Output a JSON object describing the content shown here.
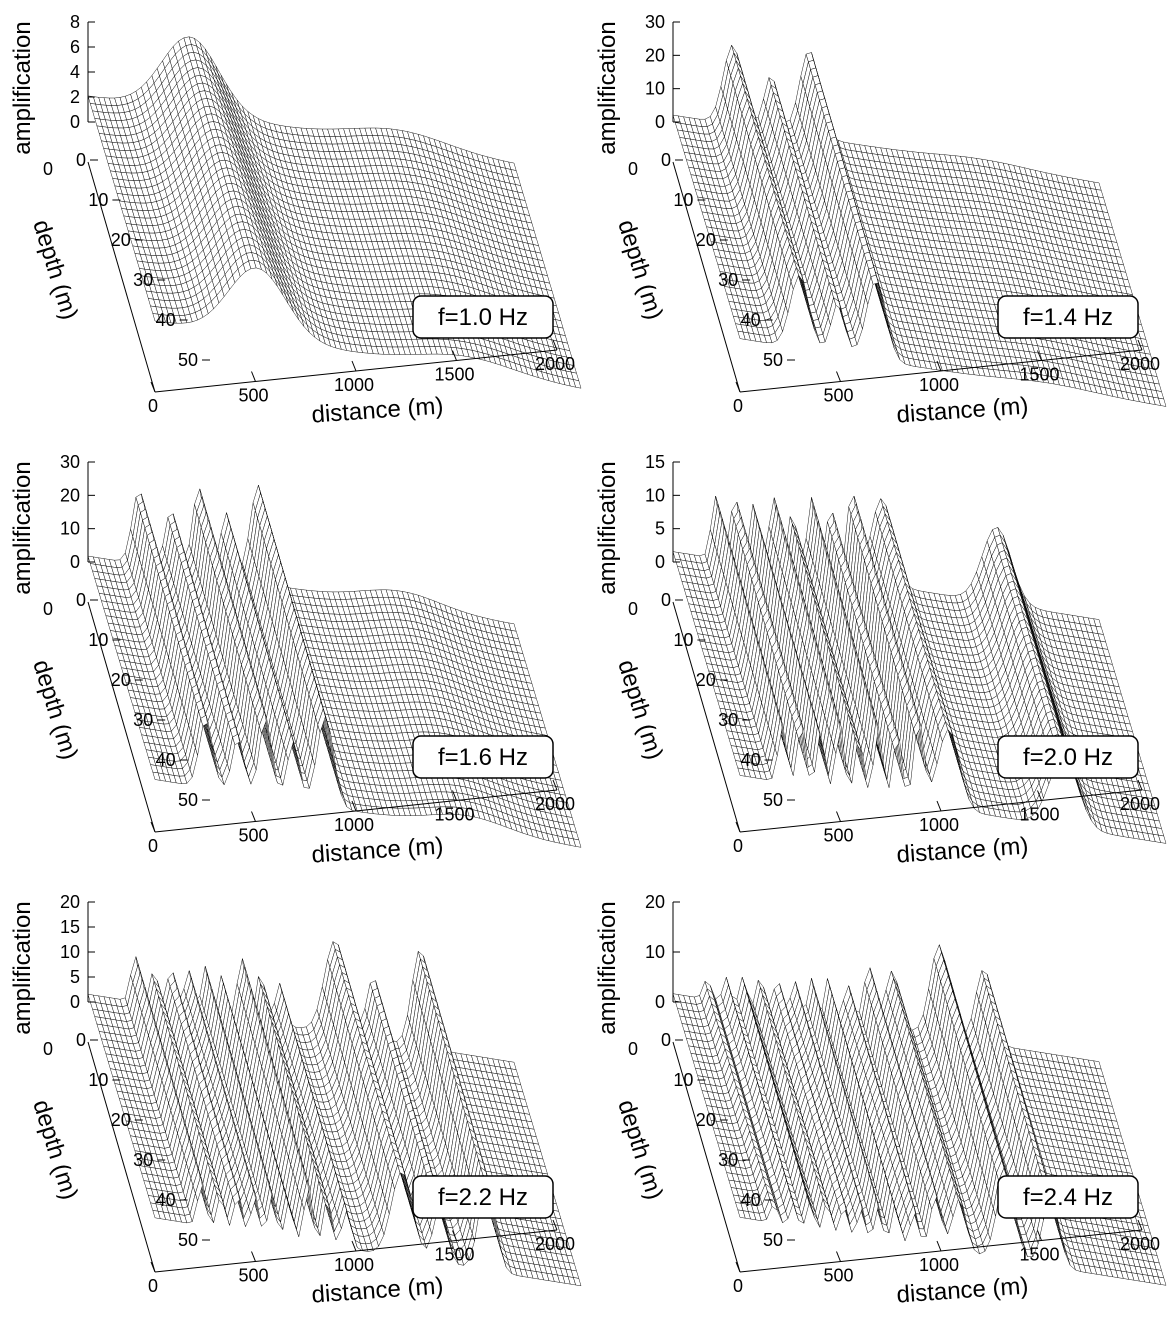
{
  "colors": {
    "mesh": "#000000",
    "face": "#ffffff",
    "background": "#ffffff"
  },
  "chart_data": [
    {
      "type": "surface",
      "annotation": "f=1.0 Hz",
      "xlabel": "distance (m)",
      "ylabel": "depth (m)",
      "zlabel": "amplification",
      "xlim": [
        0,
        2000
      ],
      "ylim": [
        0,
        50
      ],
      "zlim": [
        0,
        8
      ],
      "xticks": [
        "0",
        "500",
        "1000",
        "1500",
        "2000"
      ],
      "yticks": [
        "0",
        "10",
        "20",
        "30",
        "40",
        "50"
      ],
      "zticks": [
        "0",
        "2",
        "4",
        "6",
        "8"
      ],
      "profile": {
        "base": 2.0,
        "peaks": [
          {
            "x": 480,
            "height": 5.8,
            "width": 190
          },
          {
            "x": 1460,
            "height": 1.2,
            "width": 320
          }
        ]
      }
    },
    {
      "type": "surface",
      "annotation": "f=1.4 Hz",
      "xlabel": "distance (m)",
      "ylabel": "depth (m)",
      "zlabel": "amplification",
      "xlim": [
        0,
        2000
      ],
      "ylim": [
        0,
        50
      ],
      "zlim": [
        0,
        30
      ],
      "xticks": [
        "0",
        "500",
        "1000",
        "1500",
        "2000"
      ],
      "yticks": [
        "0",
        "10",
        "20",
        "30",
        "40",
        "50"
      ],
      "zticks": [
        "0",
        "10",
        "20",
        "30"
      ],
      "profile": {
        "base": 2.0,
        "peaks": [
          {
            "x": 280,
            "height": 23,
            "width": 62
          },
          {
            "x": 460,
            "height": 16,
            "width": 45
          },
          {
            "x": 640,
            "height": 25,
            "width": 65
          },
          {
            "x": 1450,
            "height": 1.5,
            "width": 300
          }
        ]
      }
    },
    {
      "type": "surface",
      "annotation": "f=1.6 Hz",
      "xlabel": "distance (m)",
      "ylabel": "depth (m)",
      "zlabel": "amplification",
      "xlim": [
        0,
        2000
      ],
      "ylim": [
        0,
        50
      ],
      "zlim": [
        0,
        35
      ],
      "xticks": [
        "0",
        "500",
        "1000",
        "1500",
        "2000"
      ],
      "yticks": [
        "0",
        "10",
        "20",
        "30",
        "40",
        "50"
      ],
      "zticks": [
        "0",
        "10",
        "20",
        "30"
      ],
      "profile": {
        "base": 2.0,
        "peaks": [
          {
            "x": 240,
            "height": 25,
            "width": 45
          },
          {
            "x": 390,
            "height": 20,
            "width": 40
          },
          {
            "x": 520,
            "height": 29,
            "width": 42
          },
          {
            "x": 650,
            "height": 22,
            "width": 40
          },
          {
            "x": 800,
            "height": 33,
            "width": 55
          },
          {
            "x": 1470,
            "height": 5,
            "width": 260
          }
        ]
      }
    },
    {
      "type": "surface",
      "annotation": "f=2.0 Hz",
      "xlabel": "distance (m)",
      "ylabel": "depth (m)",
      "zlabel": "amplification",
      "xlim": [
        0,
        2000
      ],
      "ylim": [
        0,
        50
      ],
      "zlim": [
        0,
        15
      ],
      "xticks": [
        "0",
        "500",
        "1000",
        "1500",
        "2000"
      ],
      "yticks": [
        "0",
        "10",
        "20",
        "30",
        "40",
        "50"
      ],
      "zticks": [
        "0",
        "5",
        "10",
        "15"
      ],
      "profile": {
        "base": 1.5,
        "peaks": [
          {
            "x": 200,
            "height": 9,
            "width": 28
          },
          {
            "x": 290,
            "height": 10,
            "width": 26
          },
          {
            "x": 380,
            "height": 9,
            "width": 26
          },
          {
            "x": 470,
            "height": 10.5,
            "width": 26
          },
          {
            "x": 560,
            "height": 9,
            "width": 26
          },
          {
            "x": 650,
            "height": 11,
            "width": 28
          },
          {
            "x": 740,
            "height": 10.5,
            "width": 28
          },
          {
            "x": 840,
            "height": 13,
            "width": 32
          },
          {
            "x": 980,
            "height": 12.5,
            "width": 70
          },
          {
            "x": 1520,
            "height": 11,
            "width": 95
          }
        ]
      }
    },
    {
      "type": "surface",
      "annotation": "f=2.2 Hz",
      "xlabel": "distance (m)",
      "ylabel": "depth (m)",
      "zlabel": "amplification",
      "xlim": [
        0,
        2000
      ],
      "ylim": [
        0,
        50
      ],
      "zlim": [
        0,
        20
      ],
      "xticks": [
        "0",
        "500",
        "1000",
        "1500",
        "2000"
      ],
      "yticks": [
        "0",
        "10",
        "20",
        "30",
        "40",
        "50"
      ],
      "zticks": [
        "0",
        "5",
        "10",
        "15",
        "20"
      ],
      "profile": {
        "base": 1.5,
        "peaks": [
          {
            "x": 220,
            "height": 9,
            "width": 26
          },
          {
            "x": 310,
            "height": 7,
            "width": 24
          },
          {
            "x": 390,
            "height": 8,
            "width": 24
          },
          {
            "x": 470,
            "height": 8,
            "width": 24
          },
          {
            "x": 550,
            "height": 9,
            "width": 24
          },
          {
            "x": 630,
            "height": 8,
            "width": 24
          },
          {
            "x": 720,
            "height": 12,
            "width": 26
          },
          {
            "x": 810,
            "height": 10,
            "width": 26
          },
          {
            "x": 900,
            "height": 8,
            "width": 30
          },
          {
            "x": 1160,
            "height": 18,
            "width": 70
          },
          {
            "x": 1340,
            "height": 12,
            "width": 45
          },
          {
            "x": 1560,
            "height": 19,
            "width": 55
          }
        ]
      }
    },
    {
      "type": "surface",
      "annotation": "f=2.4 Hz",
      "xlabel": "distance (m)",
      "ylabel": "depth (m)",
      "zlabel": "amplification",
      "xlim": [
        0,
        2000
      ],
      "ylim": [
        0,
        50
      ],
      "zlim": [
        0,
        25
      ],
      "xticks": [
        "0",
        "500",
        "1000",
        "1500",
        "2000"
      ],
      "yticks": [
        "0",
        "10",
        "20",
        "30",
        "40",
        "50"
      ],
      "zticks": [
        "0",
        "10",
        "20"
      ],
      "profile": {
        "base": 2.0,
        "peaks": [
          {
            "x": 160,
            "height": 5,
            "width": 24
          },
          {
            "x": 250,
            "height": 6,
            "width": 22
          },
          {
            "x": 330,
            "height": 7,
            "width": 22
          },
          {
            "x": 410,
            "height": 8,
            "width": 22
          },
          {
            "x": 490,
            "height": 8,
            "width": 22
          },
          {
            "x": 570,
            "height": 8,
            "width": 22
          },
          {
            "x": 650,
            "height": 9,
            "width": 22
          },
          {
            "x": 730,
            "height": 10,
            "width": 24
          },
          {
            "x": 820,
            "height": 9,
            "width": 26
          },
          {
            "x": 920,
            "height": 14,
            "width": 35
          },
          {
            "x": 1030,
            "height": 14,
            "width": 45
          },
          {
            "x": 1250,
            "height": 22,
            "width": 60
          },
          {
            "x": 1460,
            "height": 18,
            "width": 55
          }
        ]
      }
    }
  ]
}
